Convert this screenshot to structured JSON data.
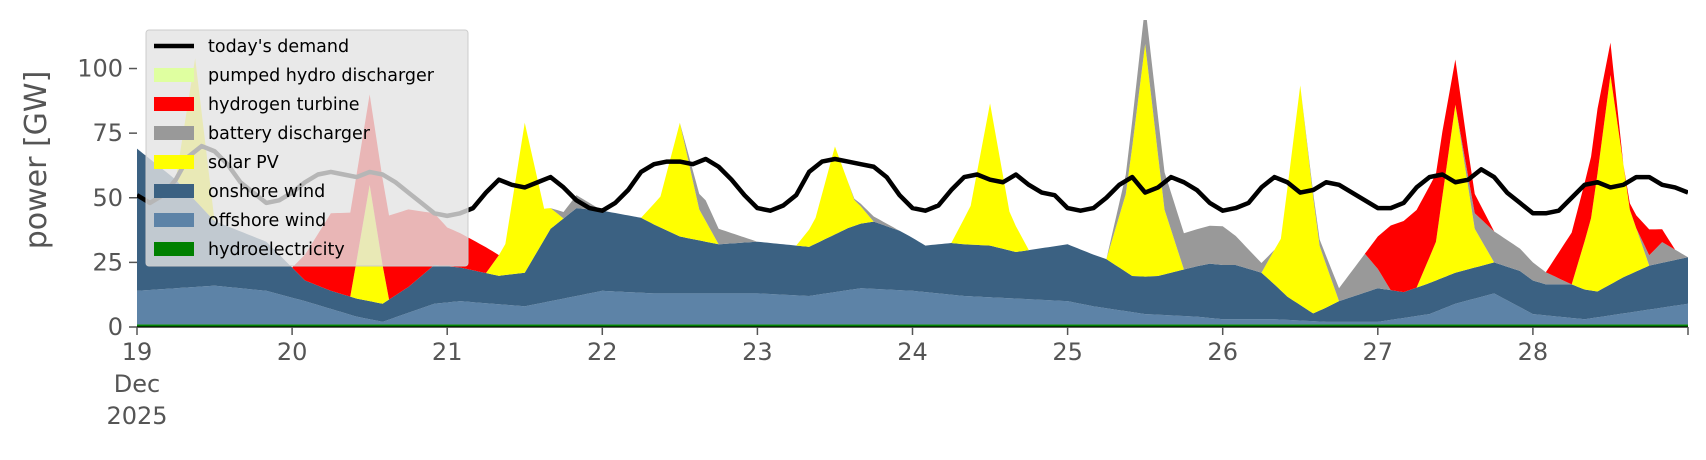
{
  "chart_data": {
    "type": "area",
    "title": "",
    "xlabel": "",
    "ylabel": "power [GW]",
    "ylim": [
      0,
      118
    ],
    "xlim": [
      0,
      240
    ],
    "yticks": [
      0,
      25,
      50,
      75,
      100
    ],
    "xticks": [
      {
        "hour": 0,
        "lines": [
          "19",
          "Dec",
          "2025"
        ]
      },
      {
        "hour": 24,
        "lines": [
          "20"
        ]
      },
      {
        "hour": 48,
        "lines": [
          "21"
        ]
      },
      {
        "hour": 72,
        "lines": [
          "22"
        ]
      },
      {
        "hour": 96,
        "lines": [
          "23"
        ]
      },
      {
        "hour": 120,
        "lines": [
          "24"
        ]
      },
      {
        "hour": 144,
        "lines": [
          "25"
        ]
      },
      {
        "hour": 168,
        "lines": [
          "26"
        ]
      },
      {
        "hour": 192,
        "lines": [
          "27"
        ]
      },
      {
        "hour": 216,
        "lines": [
          "28"
        ]
      },
      {
        "hour": 240,
        "lines": [
          ""
        ]
      }
    ],
    "grid": false,
    "legend_position": "top-left",
    "legend": [
      {
        "label": "today's demand",
        "kind": "line",
        "color": "#000000"
      },
      {
        "label": "pumped hydro discharger",
        "kind": "patch",
        "color": "#dfffa0"
      },
      {
        "label": "hydrogen turbine",
        "kind": "patch",
        "color": "#ff0000"
      },
      {
        "label": "battery discharger",
        "kind": "patch",
        "color": "#999999"
      },
      {
        "label": "solar PV",
        "kind": "patch",
        "color": "#ffff00"
      },
      {
        "label": "onshore wind",
        "kind": "patch",
        "color": "#3b6182"
      },
      {
        "label": "offshore wind",
        "kind": "patch",
        "color": "#5d83a7"
      },
      {
        "label": "hydroelectricity",
        "kind": "patch",
        "color": "#008000"
      }
    ],
    "x_unit": "hours since 19 Dec 2025 00:00",
    "stack_order_bottom_to_top": [
      "hydroelectricity",
      "offshore wind",
      "onshore wind",
      "solar PV",
      "battery discharger",
      "hydrogen turbine",
      "pumped hydro discharger"
    ],
    "stacked_series": [
      {
        "name": "hydroelectricity",
        "color": "#008000",
        "x": [
          0,
          24,
          48,
          72,
          96,
          120,
          144,
          168,
          192,
          216,
          240
        ],
        "values": [
          1,
          1,
          1,
          1,
          1,
          1,
          1,
          1,
          1,
          1,
          1
        ]
      },
      {
        "name": "offshore wind",
        "color": "#5d83a7",
        "x": [
          0,
          12,
          20,
          26,
          34,
          38,
          46,
          50,
          60,
          72,
          80,
          96,
          104,
          112,
          120,
          128,
          136,
          144,
          148,
          156,
          164,
          168,
          176,
          184,
          192,
          200,
          204,
          210,
          216,
          224,
          232,
          240
        ],
        "values": [
          13,
          15,
          13,
          9,
          3,
          1,
          8,
          9,
          7,
          13,
          12,
          12,
          11,
          14,
          13,
          11,
          10,
          9,
          7,
          4,
          3,
          2,
          2,
          1,
          1,
          4,
          8,
          12,
          4,
          2,
          5,
          8
        ]
      },
      {
        "name": "onshore wind",
        "color": "#3b6182",
        "x": [
          0,
          6,
          12,
          20,
          26,
          30,
          34,
          38,
          42,
          46,
          50,
          56,
          60,
          64,
          68,
          72,
          78,
          84,
          90,
          96,
          104,
          110,
          114,
          118,
          122,
          126,
          132,
          136,
          144,
          150,
          154,
          158,
          162,
          166,
          170,
          174,
          178,
          182,
          186,
          192,
          196,
          200,
          204,
          210,
          214,
          218,
          222,
          226,
          230,
          234,
          240
        ],
        "values": [
          55,
          42,
          25,
          19,
          8,
          7,
          7,
          7,
          10,
          15,
          13,
          11,
          13,
          28,
          34,
          31,
          29,
          22,
          19,
          20,
          19,
          24,
          26,
          23,
          18,
          20,
          20,
          18,
          22,
          19,
          14,
          15,
          18,
          21,
          21,
          18,
          9,
          3,
          8,
          13,
          10,
          12,
          12,
          12,
          14,
          12,
          13,
          10,
          14,
          17,
          18
        ]
      },
      {
        "name": "solar PV",
        "color": "#ffff00",
        "x": [
          0,
          3,
          6,
          9,
          12,
          15,
          18,
          24,
          30,
          33,
          36,
          39,
          42,
          48,
          54,
          57,
          60,
          63,
          66,
          72,
          78,
          81,
          84,
          87,
          90,
          96,
          102,
          105,
          108,
          111,
          114,
          120,
          126,
          129,
          132,
          135,
          138,
          144,
          150,
          153,
          156,
          159,
          162,
          168,
          174,
          177,
          180,
          183,
          186,
          192,
          198,
          201,
          204,
          207,
          210,
          216,
          222,
          225,
          228,
          231,
          234,
          240
        ],
        "values": [
          0,
          0,
          0,
          55,
          0,
          0,
          0,
          0,
          0,
          0,
          45,
          0,
          0,
          0,
          0,
          12,
          58,
          12,
          0,
          0,
          0,
          12,
          44,
          12,
          0,
          0,
          0,
          10,
          34,
          10,
          0,
          0,
          0,
          15,
          55,
          15,
          0,
          0,
          0,
          30,
          90,
          25,
          0,
          0,
          0,
          20,
          85,
          25,
          0,
          0,
          0,
          15,
          65,
          15,
          0,
          0,
          0,
          28,
          81,
          25,
          0,
          0
        ]
      },
      {
        "name": "battery discharger",
        "color": "#999999",
        "x": [
          0,
          24,
          48,
          60,
          64,
          68,
          72,
          84,
          88,
          92,
          96,
          110,
          114,
          118,
          144,
          150,
          156,
          162,
          168,
          176,
          180,
          186,
          190,
          194,
          198,
          204,
          210,
          216,
          222,
          228,
          232,
          236,
          240
        ],
        "values": [
          0,
          0,
          0,
          0,
          0,
          5,
          0,
          0,
          8,
          4,
          0,
          0,
          2,
          0,
          0,
          0,
          15,
          14,
          15,
          0,
          0,
          5,
          15,
          0,
          0,
          0,
          12,
          7,
          0,
          0,
          0,
          8,
          0
        ]
      },
      {
        "name": "hydrogen turbine",
        "color": "#ff0000",
        "x": [
          0,
          18,
          24,
          30,
          36,
          42,
          48,
          54,
          56,
          60,
          64,
          66,
          72,
          76,
          80,
          84,
          88,
          92,
          96,
          120,
          144,
          160,
          164,
          168,
          172,
          176,
          186,
          190,
          194,
          198,
          202,
          206,
          210,
          214,
          218,
          222,
          226,
          230,
          234,
          238,
          240
        ],
        "values": [
          0,
          0,
          0,
          30,
          35,
          30,
          15,
          10,
          0,
          0,
          0,
          0,
          0,
          0,
          0,
          0,
          0,
          0,
          0,
          0,
          0,
          0,
          0,
          0,
          0,
          0,
          0,
          0,
          25,
          30,
          25,
          10,
          0,
          0,
          0,
          20,
          25,
          0,
          10,
          0,
          0
        ]
      },
      {
        "name": "pumped hydro discharger",
        "color": "#dfffa0",
        "x": [
          0,
          24,
          48,
          240
        ],
        "values": [
          0,
          0,
          0,
          0
        ]
      }
    ],
    "demand": {
      "name": "today's demand",
      "color": "#000000",
      "x": [
        0,
        2,
        4,
        6,
        8,
        10,
        12,
        14,
        16,
        18,
        20,
        22,
        24,
        26,
        28,
        30,
        32,
        34,
        36,
        38,
        40,
        42,
        44,
        46,
        48,
        50,
        52,
        54,
        56,
        58,
        60,
        62,
        64,
        66,
        68,
        70,
        72,
        74,
        76,
        78,
        80,
        82,
        84,
        86,
        88,
        90,
        92,
        94,
        96,
        98,
        100,
        102,
        104,
        106,
        108,
        110,
        112,
        114,
        116,
        118,
        120,
        122,
        124,
        126,
        128,
        130,
        132,
        134,
        136,
        138,
        140,
        142,
        144,
        146,
        148,
        150,
        152,
        154,
        156,
        158,
        160,
        162,
        164,
        166,
        168,
        170,
        172,
        174,
        176,
        178,
        180,
        182,
        184,
        186,
        188,
        190,
        192,
        194,
        196,
        198,
        200,
        202,
        204,
        206,
        208,
        210,
        212,
        214,
        216,
        218,
        220,
        222,
        224,
        226,
        228,
        230,
        232,
        234,
        236,
        238,
        240
      ],
      "values": [
        51,
        48,
        51,
        57,
        66,
        70,
        68,
        63,
        56,
        52,
        48,
        49,
        52,
        56,
        59,
        60,
        59,
        58,
        60,
        59,
        56,
        52,
        48,
        44,
        43,
        44,
        46,
        52,
        57,
        55,
        54,
        56,
        58,
        54,
        49,
        46,
        45,
        48,
        53,
        60,
        63,
        64,
        64,
        63,
        65,
        62,
        57,
        51,
        46,
        45,
        47,
        51,
        60,
        64,
        65,
        64,
        63,
        62,
        58,
        51,
        46,
        45,
        47,
        53,
        58,
        59,
        57,
        56,
        59,
        55,
        52,
        51,
        46,
        45,
        46,
        50,
        55,
        58,
        52,
        54,
        58,
        56,
        53,
        48,
        45,
        46,
        48,
        54,
        58,
        56,
        52,
        53,
        56,
        55,
        52,
        49,
        46,
        46,
        48,
        54,
        58,
        59,
        56,
        57,
        61,
        58,
        52,
        48,
        44,
        44,
        45,
        50,
        55,
        56,
        54,
        55,
        58,
        58,
        55,
        54,
        52
      ]
    }
  }
}
